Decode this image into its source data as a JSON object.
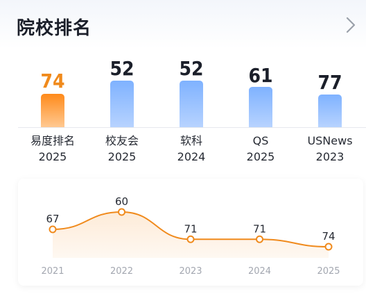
{
  "header": {
    "title": "院校排名"
  },
  "rankings": [
    {
      "rank": "74",
      "source": "易度排名",
      "year": "2025",
      "active": true
    },
    {
      "rank": "52",
      "source": "校友会",
      "year": "2025",
      "active": false
    },
    {
      "rank": "52",
      "source": "软科",
      "year": "2024",
      "active": false
    },
    {
      "rank": "61",
      "source": "QS",
      "year": "2025",
      "active": false
    },
    {
      "rank": "77",
      "source": "USNews",
      "year": "2023",
      "active": false
    }
  ],
  "chart_data": {
    "type": "area",
    "x": [
      "2021",
      "2022",
      "2023",
      "2024",
      "2025"
    ],
    "values": [
      67,
      60,
      71,
      71,
      74
    ],
    "data_labels": [
      "67",
      "60",
      "71",
      "71",
      "74"
    ],
    "inverted_axis": true,
    "color": "#f08a1c",
    "fill_color": "#fdebd8",
    "grid": false
  },
  "colors": {
    "accent": "#f08a1c",
    "bar": "#8fbcff",
    "text": "#1b1f2a"
  }
}
